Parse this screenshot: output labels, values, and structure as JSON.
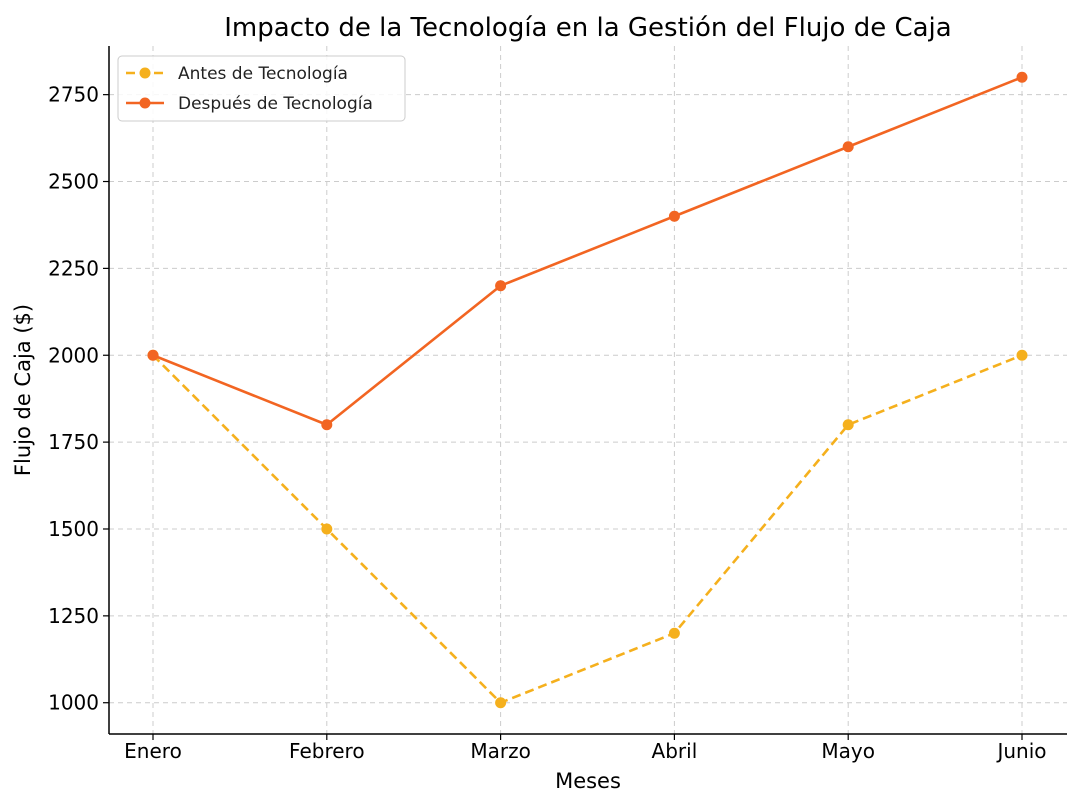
{
  "chart_data": {
    "type": "line",
    "title": "Impacto de la Tecnología en la Gestión del Flujo de Caja",
    "xlabel": "Meses",
    "ylabel": "Flujo de Caja ($)",
    "categories": [
      "Enero",
      "Febrero",
      "Marzo",
      "Abril",
      "Mayo",
      "Junio"
    ],
    "ylim": [
      910,
      2890
    ],
    "yticks": [
      1000,
      1250,
      1500,
      1750,
      2000,
      2250,
      2500,
      2750
    ],
    "grid": true,
    "legend_position": "top-left",
    "series": [
      {
        "name": "Antes de Tecnología",
        "values": [
          2000,
          1500,
          1000,
          1200,
          1800,
          2000
        ],
        "color": "#F5B01D",
        "line_style": "dashed",
        "marker": "circle"
      },
      {
        "name": "Después de Tecnología",
        "values": [
          2000,
          1800,
          2200,
          2400,
          2600,
          2800
        ],
        "color": "#F26522",
        "line_style": "solid",
        "marker": "circle"
      }
    ]
  }
}
